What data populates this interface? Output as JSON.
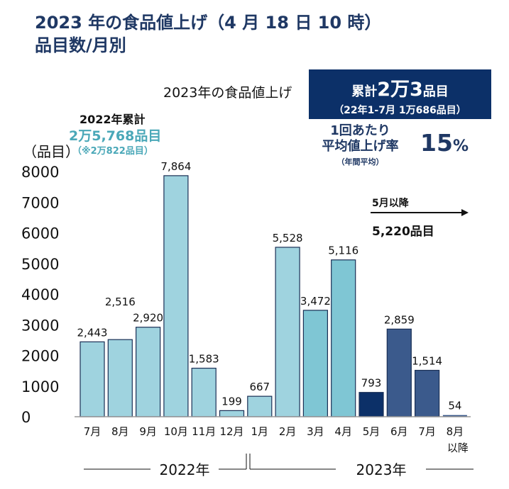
{
  "title": {
    "line1": "2023 年の食品値上げ（4 月 18 日 10 時）",
    "line2": "品目数/月別"
  },
  "summary_2023": {
    "label": "2023年の食品値上げ",
    "total_prefix": "累計",
    "total_big1": "2万",
    "total_big2": "3",
    "total_suffix": "品目",
    "sub": "（22年1-7月 1万686品目）",
    "rate_label1": "1回あたり",
    "rate_label2": "平均値上げ率",
    "rate_note": "（年間平均）",
    "rate_value": "15",
    "rate_unit": "%"
  },
  "summary_2022": {
    "label": "2022年累計",
    "total": "2万5,768品目",
    "note": "（※2万822品目）"
  },
  "may_onward": {
    "label": "5月以降",
    "value": "5,220品目"
  },
  "colors": {
    "title": "#1f3864",
    "navy_box": "#0c3068",
    "teal_text": "#4aa8b8",
    "bar_light": "#9fd3df",
    "bar_mid": "#7fc6d4",
    "bar_dark": "#0c3068",
    "bar_slate": "#3b5a8c"
  },
  "chart_data": {
    "type": "bar",
    "ylabel": "（品目）",
    "ylim": [
      0,
      8000
    ],
    "yticks": [
      0,
      1000,
      2000,
      3000,
      4000,
      5000,
      6000,
      7000,
      8000
    ],
    "categories": [
      "7月",
      "8月",
      "9月",
      "10月",
      "11月",
      "12月",
      "1月",
      "2月",
      "3月",
      "4月",
      "5月",
      "6月",
      "7月",
      "8月"
    ],
    "category_sub": {
      "13": "以降"
    },
    "values": [
      2443,
      2516,
      2920,
      7864,
      1583,
      199,
      667,
      5528,
      3472,
      5116,
      793,
      2859,
      1514,
      54
    ],
    "value_labels": [
      "2,443",
      "2,516",
      "2,920",
      "7,864",
      "1,583",
      "199",
      "667",
      "5,528",
      "3,472",
      "5,116",
      "793",
      "2,859",
      "1,514",
      "54"
    ],
    "bar_color_keys": [
      "bar_light",
      "bar_light",
      "bar_light",
      "bar_light",
      "bar_light",
      "bar_light",
      "bar_light",
      "bar_light",
      "bar_mid",
      "bar_mid",
      "bar_dark",
      "bar_slate",
      "bar_slate",
      "bar_slate"
    ],
    "groups": [
      {
        "label": "2022年"
      },
      {
        "label": "2023年"
      }
    ],
    "grid": false
  }
}
